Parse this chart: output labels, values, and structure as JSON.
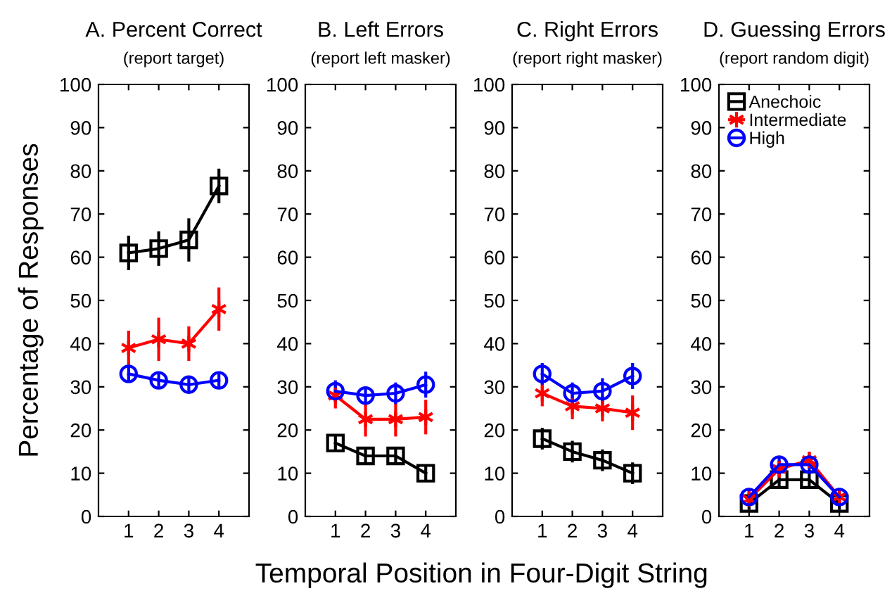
{
  "chart_data": [
    {
      "type": "line",
      "title": "A. Percent Correct",
      "subtitle": "(report target)",
      "ylabel": "Percentage of Responses",
      "xlabel": "Temporal Position in Four-Digit String",
      "x": [
        1,
        2,
        3,
        4
      ],
      "xlim": [
        0,
        5
      ],
      "xticks": [
        1,
        2,
        3,
        4
      ],
      "ylim": [
        0,
        100
      ],
      "yticks": [
        0,
        10,
        20,
        30,
        40,
        50,
        60,
        70,
        80,
        90,
        100
      ],
      "grid": false,
      "line_style": "solid",
      "series": [
        {
          "color": "#000000",
          "marker": "square",
          "values": [
            61,
            62,
            64,
            76.5
          ],
          "errors": [
            4,
            4,
            5,
            4
          ]
        },
        {
          "color": "#ff0000",
          "marker": "cross",
          "values": [
            39,
            41,
            40,
            48
          ],
          "errors": [
            4,
            5,
            4,
            5
          ]
        },
        {
          "color": "#0000ff",
          "marker": "circle",
          "values": [
            33,
            31.5,
            30.5,
            31.5
          ],
          "errors": [
            2,
            1.5,
            1.5,
            1.5
          ]
        }
      ]
    },
    {
      "type": "line",
      "title": "B. Left Errors",
      "subtitle": "(report left masker)",
      "x": [
        1,
        2,
        3,
        4
      ],
      "xlim": [
        0,
        5
      ],
      "xticks": [
        1,
        2,
        3,
        4
      ],
      "ylim": [
        0,
        100
      ],
      "yticks": [
        0,
        10,
        20,
        30,
        40,
        50,
        60,
        70,
        80,
        90,
        100
      ],
      "grid": false,
      "line_style": "solid",
      "series": [
        {
          "color": "#000000",
          "marker": "square",
          "values": [
            17,
            14,
            14,
            10
          ],
          "errors": [
            2,
            2,
            2,
            2
          ]
        },
        {
          "color": "#ff0000",
          "marker": "cross",
          "values": [
            28,
            22.5,
            22.5,
            23
          ],
          "errors": [
            3,
            4,
            4,
            4
          ]
        },
        {
          "color": "#0000ff",
          "marker": "circle",
          "values": [
            29,
            28,
            28.5,
            30.5
          ],
          "errors": [
            2.5,
            2,
            2.5,
            3
          ]
        }
      ]
    },
    {
      "type": "line",
      "title": "C. Right Errors",
      "subtitle": "(report right masker)",
      "x": [
        1,
        2,
        3,
        4
      ],
      "xlim": [
        0,
        5
      ],
      "xticks": [
        1,
        2,
        3,
        4
      ],
      "ylim": [
        0,
        100
      ],
      "yticks": [
        0,
        10,
        20,
        30,
        40,
        50,
        60,
        70,
        80,
        90,
        100
      ],
      "grid": false,
      "line_style": "solid",
      "series": [
        {
          "color": "#000000",
          "marker": "square",
          "values": [
            18,
            15,
            13,
            10
          ],
          "errors": [
            2.5,
            2.5,
            2.5,
            2.5
          ]
        },
        {
          "color": "#ff0000",
          "marker": "cross",
          "values": [
            28.5,
            25.5,
            25,
            24
          ],
          "errors": [
            3,
            3,
            3,
            4
          ]
        },
        {
          "color": "#0000ff",
          "marker": "circle",
          "values": [
            33,
            28.5,
            29,
            32.5
          ],
          "errors": [
            2.5,
            2.5,
            3,
            3
          ]
        }
      ]
    },
    {
      "type": "line",
      "title": "D. Guessing Errors",
      "subtitle": "(report random digit)",
      "x": [
        1,
        2,
        3,
        4
      ],
      "xlim": [
        0,
        5
      ],
      "xticks": [
        1,
        2,
        3,
        4
      ],
      "ylim": [
        0,
        100
      ],
      "yticks": [
        0,
        10,
        20,
        30,
        40,
        50,
        60,
        70,
        80,
        90,
        100
      ],
      "grid": false,
      "line_style": "solid",
      "legend": "top left",
      "series": [
        {
          "name": "Anechoic",
          "color": "#000000",
          "marker": "square",
          "values": [
            3,
            8.5,
            8.5,
            3
          ],
          "errors": [
            1.5,
            1.5,
            1.5,
            1.5
          ]
        },
        {
          "name": "Intermediate",
          "color": "#ff0000",
          "marker": "cross",
          "values": [
            4,
            11,
            13,
            4.5
          ],
          "errors": [
            1.5,
            2,
            2,
            1.5
          ]
        },
        {
          "name": "High",
          "color": "#0000ff",
          "marker": "circle",
          "values": [
            4.5,
            12,
            12,
            4.5
          ],
          "errors": [
            2,
            2,
            2,
            2
          ]
        }
      ]
    }
  ]
}
